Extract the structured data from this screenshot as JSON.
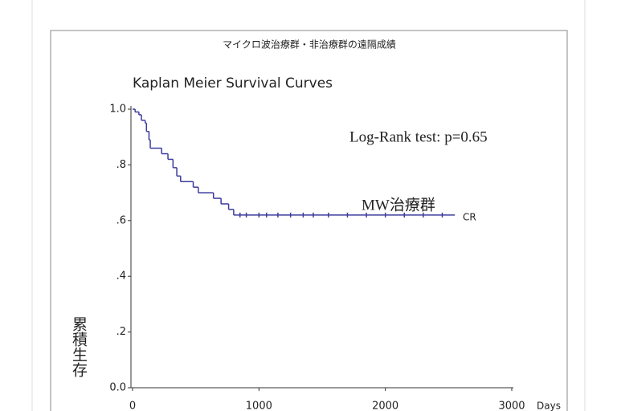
{
  "chart_data": {
    "type": "step",
    "title": "マイクロ波治療群・非治療群の遠隔成績",
    "subtitle": "Kaplan Meier Survival Curves",
    "ylabel": "累積生存",
    "xlabel": "Days",
    "annotations": [
      "Log-Rank test: p=0.65",
      "CR"
    ],
    "xlim": [
      0,
      3000
    ],
    "xticks": [
      0,
      1000,
      2000,
      3000
    ],
    "ylim": [
      0,
      1
    ],
    "yticks": [
      {
        "value": 0,
        "label": "0.0"
      },
      {
        "value": 0.2,
        "label": ".2"
      },
      {
        "value": 0.4,
        "label": ".4"
      },
      {
        "value": 0.6,
        "label": ".6"
      },
      {
        "value": 0.8,
        "label": ".8"
      },
      {
        "value": 1,
        "label": "1.0"
      }
    ],
    "series": [
      {
        "name": "MW治療群",
        "color": "#3b3b9c",
        "x": [
          0,
          20,
          50,
          70,
          100,
          110,
          130,
          140,
          230,
          280,
          320,
          350,
          380,
          480,
          520,
          640,
          700,
          760,
          800,
          2550
        ],
        "values": [
          1.0,
          0.99,
          0.98,
          0.96,
          0.95,
          0.92,
          0.89,
          0.86,
          0.84,
          0.82,
          0.79,
          0.76,
          0.74,
          0.72,
          0.7,
          0.68,
          0.66,
          0.64,
          0.62,
          0.62
        ],
        "censor_x": [
          850,
          900,
          1000,
          1060,
          1150,
          1250,
          1350,
          1430,
          1550,
          1700,
          1850,
          2000,
          2150,
          2300,
          2450
        ],
        "censor_values": [
          0.62,
          0.62,
          0.62,
          0.62,
          0.62,
          0.62,
          0.62,
          0.62,
          0.62,
          0.62,
          0.62,
          0.62,
          0.62,
          0.62,
          0.62
        ]
      }
    ]
  }
}
